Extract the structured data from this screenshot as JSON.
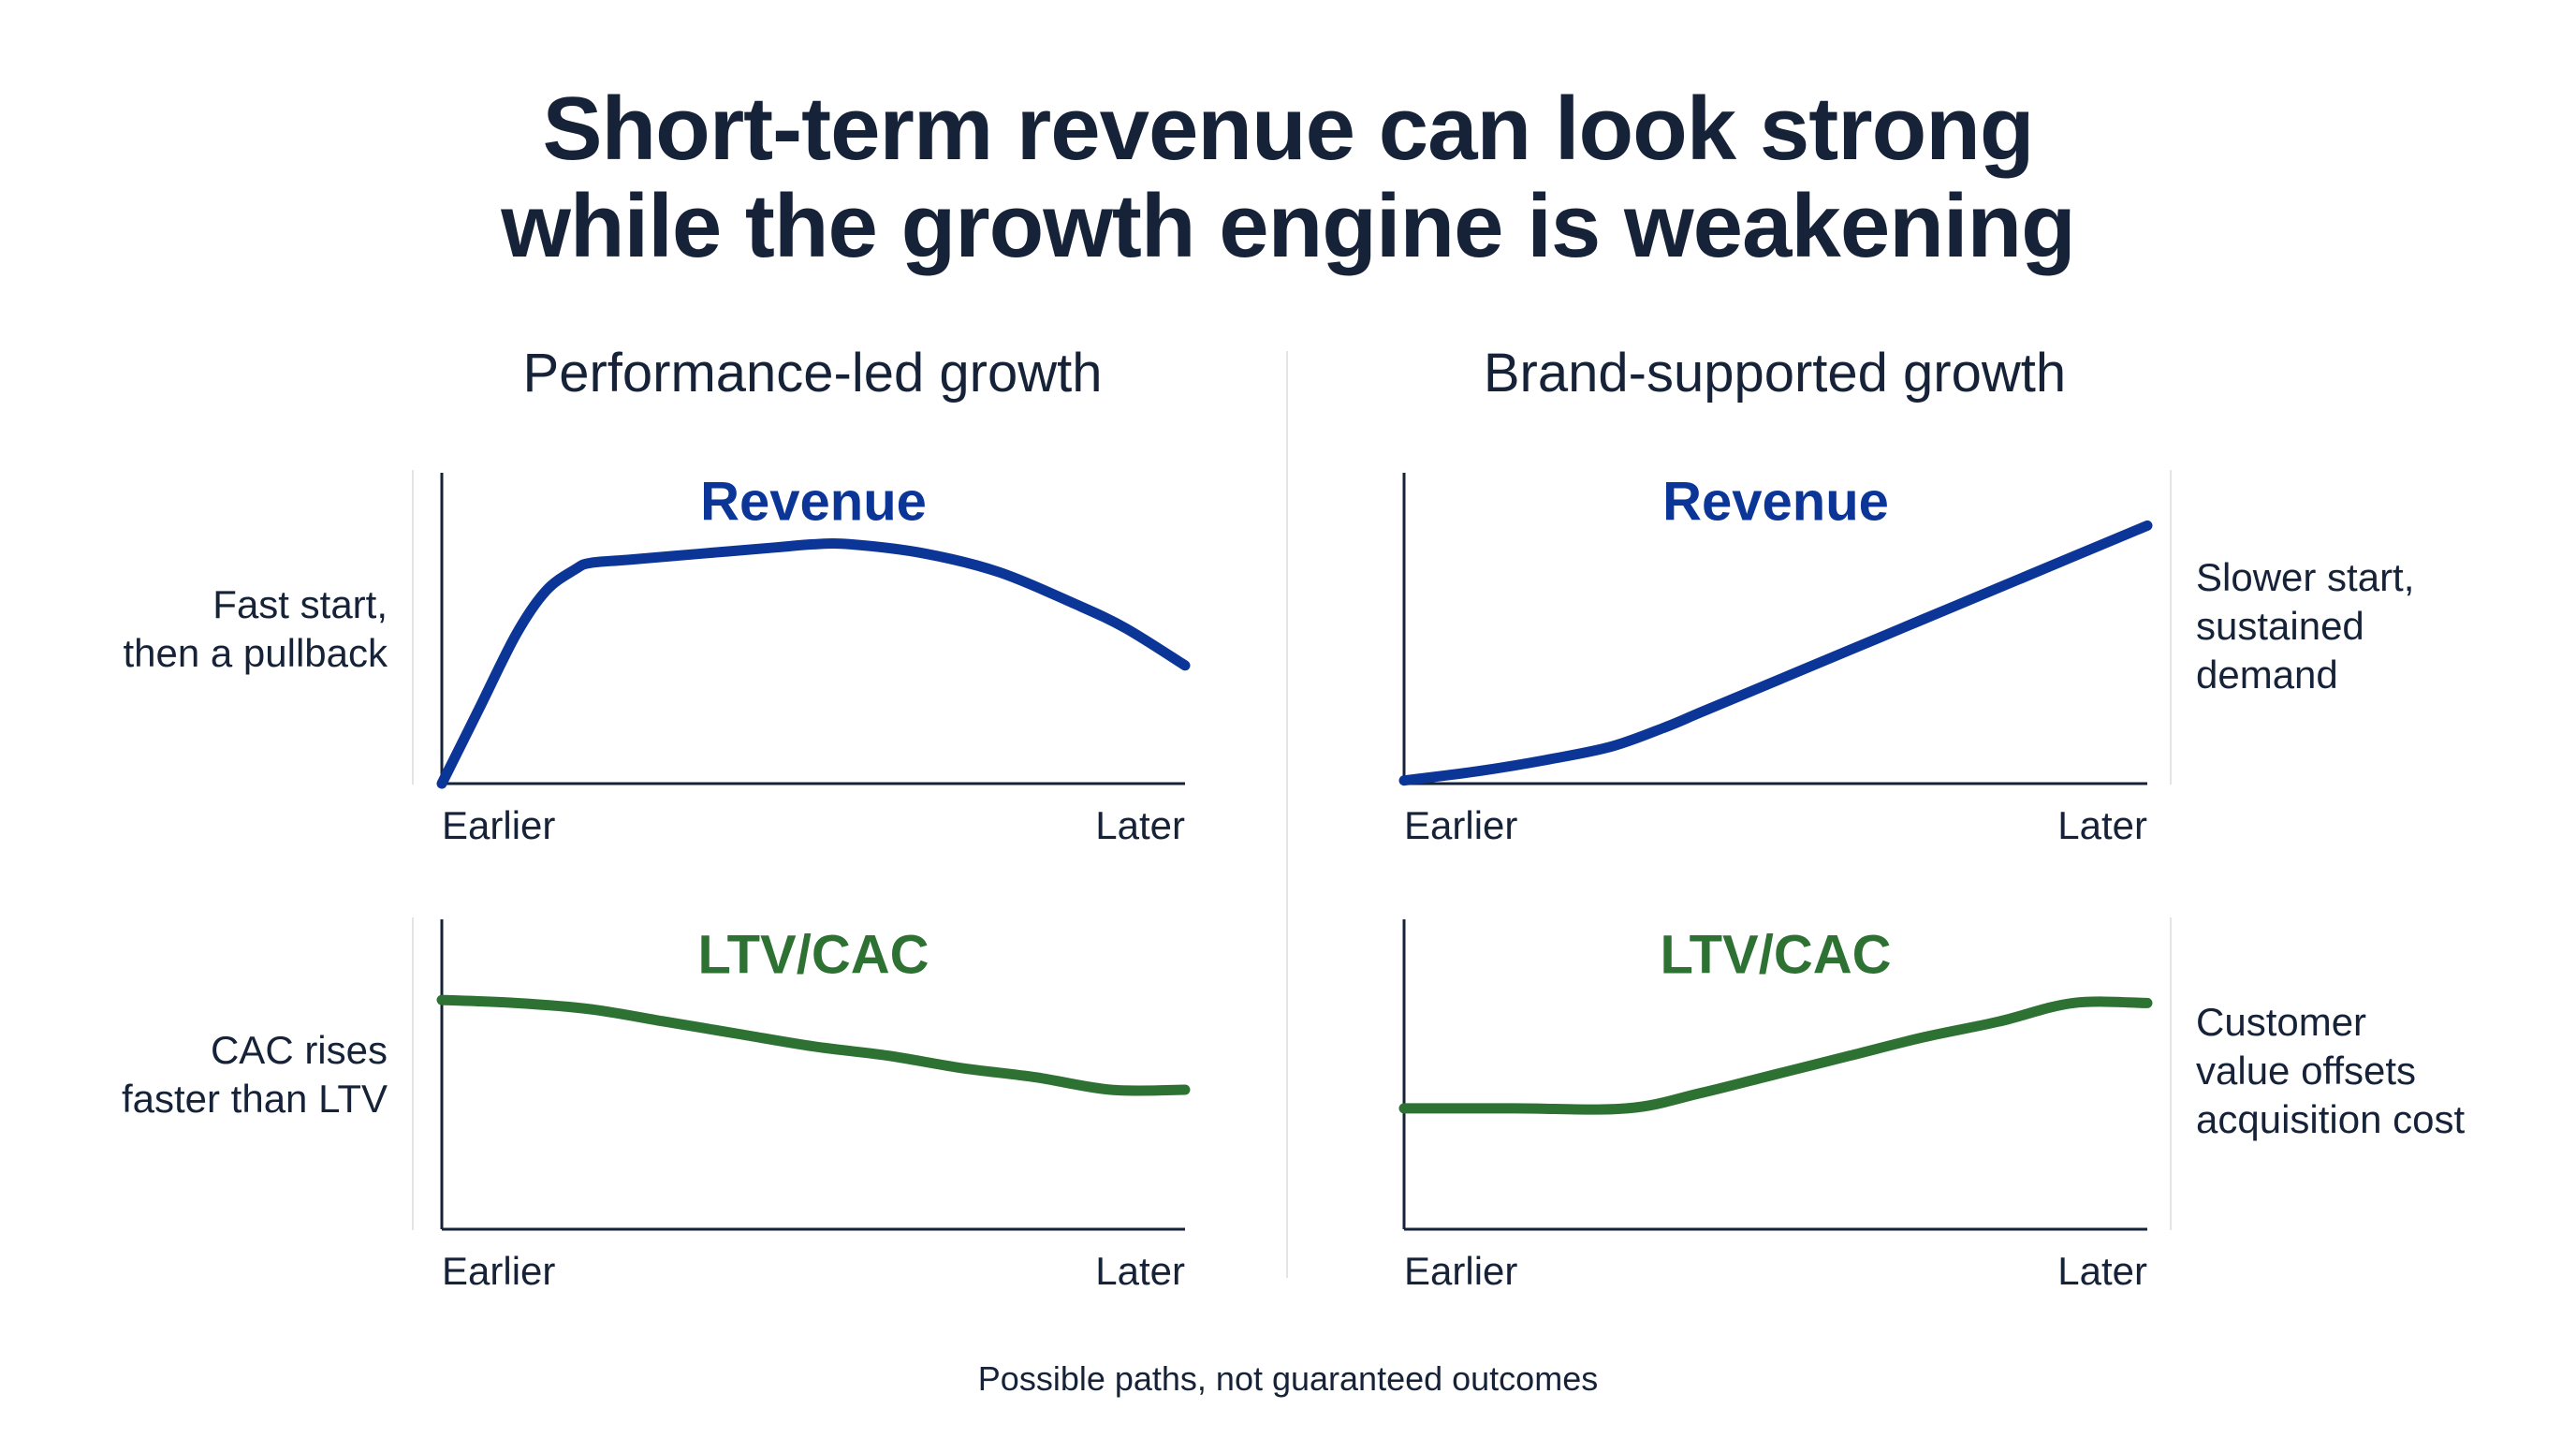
{
  "title": {
    "line1": "Short-term revenue can look strong",
    "line2": "while the growth engine is weakening"
  },
  "columns": [
    {
      "heading": "Performance-led growth",
      "notes": [
        {
          "lines": [
            "Fast start,",
            "then a pullback"
          ]
        },
        {
          "lines": [
            "CAC rises",
            "faster than LTV"
          ]
        }
      ]
    },
    {
      "heading": "Brand-supported growth",
      "notes": [
        {
          "lines": [
            "Slower start,",
            "sustained",
            "demand"
          ]
        },
        {
          "lines": [
            "Customer",
            "value offsets",
            "acquisition cost"
          ]
        }
      ]
    }
  ],
  "footer": "Possible paths, not guaranteed outcomes",
  "colors": {
    "revenue": "#0b3597",
    "ltv_cac": "#2d7133",
    "axis": "#162238",
    "text": "#162238",
    "divider": "#e2e4e8"
  },
  "chart_data": [
    {
      "type": "line",
      "title": "Revenue",
      "group": "Performance-led growth",
      "x_start_label": "Earlier",
      "x_end_label": "Later",
      "xlim": [
        0,
        100
      ],
      "ylim": [
        0,
        100
      ],
      "x": [
        0,
        5,
        10,
        14,
        18,
        20,
        25,
        35,
        45,
        50,
        55,
        65,
        75,
        85,
        92,
        100
      ],
      "values": [
        0,
        24,
        48,
        62,
        69,
        71,
        72,
        74,
        76,
        77,
        77,
        74,
        68,
        58,
        50,
        38
      ]
    },
    {
      "type": "line",
      "title": "Revenue",
      "group": "Brand-supported growth",
      "x_start_label": "Earlier",
      "x_end_label": "Later",
      "xlim": [
        0,
        100
      ],
      "ylim": [
        0,
        100
      ],
      "x": [
        0,
        10,
        20,
        28,
        35,
        40,
        50,
        60,
        70,
        80,
        90,
        100
      ],
      "values": [
        1,
        4,
        8,
        12,
        18,
        23,
        33,
        43,
        53,
        63,
        73,
        83
      ]
    },
    {
      "type": "line",
      "title": "LTV/CAC",
      "group": "Performance-led growth",
      "x_start_label": "Earlier",
      "x_end_label": "Later",
      "xlim": [
        0,
        100
      ],
      "ylim": [
        0,
        100
      ],
      "x": [
        0,
        10,
        20,
        30,
        40,
        50,
        60,
        70,
        80,
        90,
        100
      ],
      "values": [
        74,
        73,
        71,
        67,
        63,
        59,
        56,
        52,
        49,
        45,
        45
      ]
    },
    {
      "type": "line",
      "title": "LTV/CAC",
      "group": "Brand-supported growth",
      "x_start_label": "Earlier",
      "x_end_label": "Later",
      "xlim": [
        0,
        100
      ],
      "ylim": [
        0,
        100
      ],
      "x": [
        0,
        15,
        30,
        40,
        50,
        60,
        70,
        80,
        90,
        100
      ],
      "values": [
        39,
        39,
        39,
        44,
        50,
        56,
        62,
        67,
        73,
        73
      ]
    }
  ]
}
